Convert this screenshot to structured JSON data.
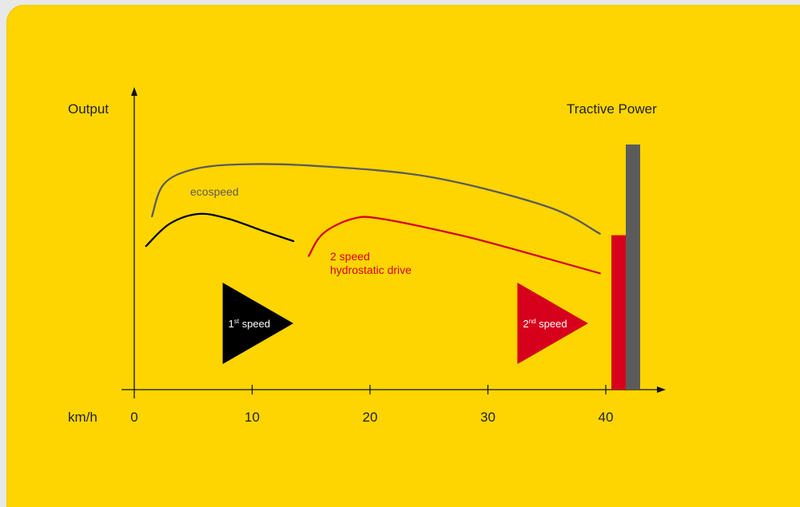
{
  "chart_data": {
    "type": "line",
    "ylabel": "Output",
    "xlabel": "km/h",
    "xlim": [
      0,
      45
    ],
    "ylim": [
      0,
      100
    ],
    "x_ticks": [
      "0",
      "10",
      "20",
      "30",
      "40"
    ],
    "x_tick_values": [
      0,
      10,
      20,
      30,
      40
    ],
    "series": [
      {
        "name": "ecospeed",
        "color": "#5b5b5b",
        "points": [
          [
            1.5,
            70
          ],
          [
            2.5,
            83
          ],
          [
            5,
            89
          ],
          [
            9,
            91
          ],
          [
            15,
            90.5
          ],
          [
            25,
            86
          ],
          [
            35,
            74
          ],
          [
            39.5,
            63
          ]
        ]
      },
      {
        "name": "1st speed segment",
        "color": "#000000",
        "points": [
          [
            1,
            58
          ],
          [
            3,
            67
          ],
          [
            5.5,
            71
          ],
          [
            8,
            69
          ],
          [
            11,
            64
          ],
          [
            13.5,
            60
          ]
        ]
      },
      {
        "name": "2 speed hydrostatic drive",
        "color": "#d6001c",
        "points": [
          [
            14.8,
            54
          ],
          [
            16,
            63
          ],
          [
            18.5,
            69
          ],
          [
            21,
            69
          ],
          [
            28,
            62
          ],
          [
            35,
            53
          ],
          [
            39.5,
            47
          ]
        ]
      }
    ],
    "series_labels": {
      "ecospeed": "ecospeed",
      "hydro_line1": "2 speed",
      "hydro_line2": "hydrostatic drive"
    },
    "gear_markers": [
      {
        "label_num": "1",
        "label_sup": "st",
        "label_text": "speed",
        "x_start": 7.5,
        "x_end": 13.5,
        "color": "#000000"
      },
      {
        "label_num": "2",
        "label_sup": "nd",
        "label_text": "speed",
        "x_start": 32.5,
        "x_end": 38.5,
        "color": "#d6001c"
      }
    ],
    "tractive_power": {
      "label": "Tractive Power",
      "bars": [
        {
          "name": "2 speed hydrostatic drive",
          "value": 63,
          "color": "#d6001c"
        },
        {
          "name": "ecospeed",
          "value": 100,
          "color": "#5b5b5b"
        }
      ]
    }
  }
}
